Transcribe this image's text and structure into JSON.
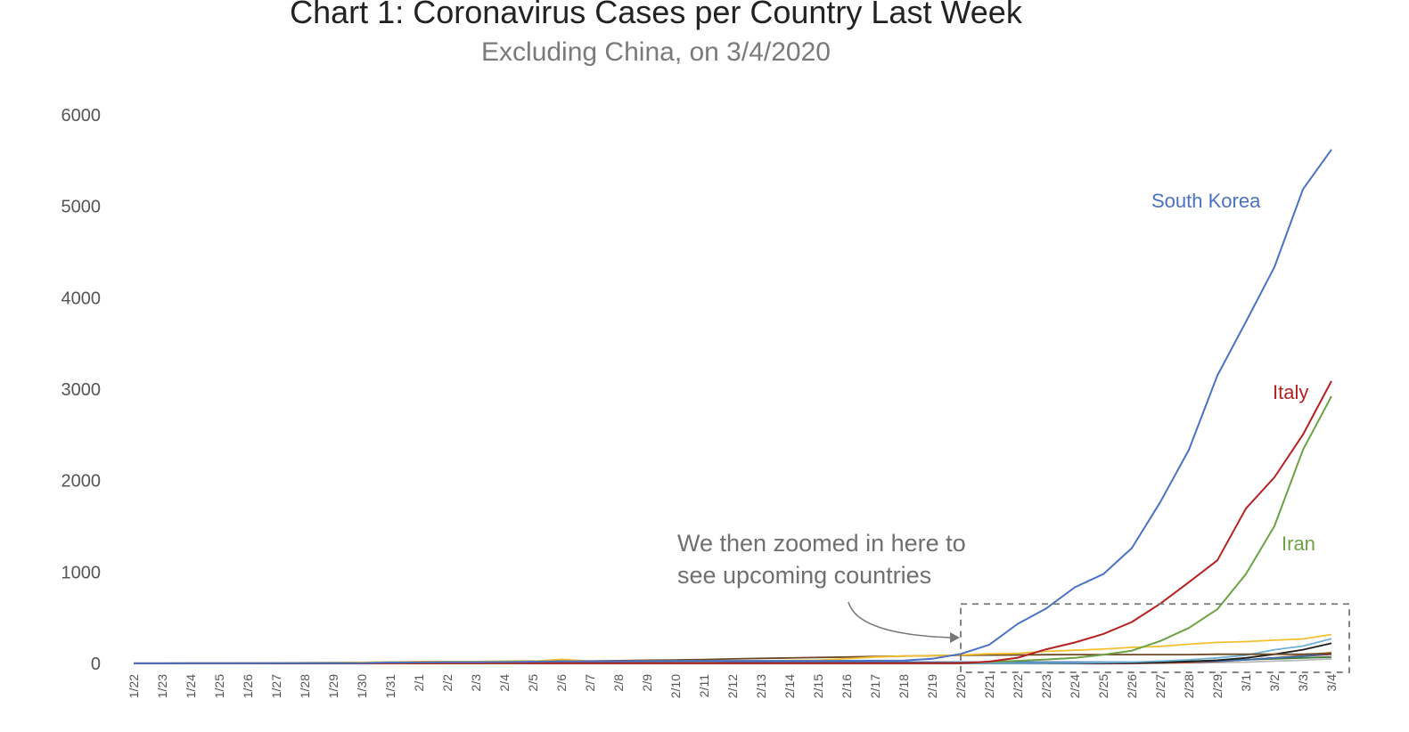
{
  "chart_data": {
    "type": "line",
    "title": "Chart 1: Coronavirus Cases per Country Last Week",
    "subtitle": "Excluding China, on 3/4/2020",
    "xlabel": "",
    "ylabel": "",
    "ylim": [
      0,
      6000
    ],
    "yticks": [
      "0",
      "1000",
      "2000",
      "3000",
      "4000",
      "5000",
      "6000"
    ],
    "grid": false,
    "legend": "none",
    "x": [
      "1/22",
      "1/23",
      "1/24",
      "1/25",
      "1/26",
      "1/27",
      "1/28",
      "1/29",
      "1/30",
      "1/31",
      "2/1",
      "2/2",
      "2/3",
      "2/4",
      "2/5",
      "2/6",
      "2/7",
      "2/8",
      "2/9",
      "2/10",
      "2/11",
      "2/12",
      "2/13",
      "2/14",
      "2/15",
      "2/16",
      "2/17",
      "2/18",
      "2/19",
      "2/20",
      "2/21",
      "2/22",
      "2/23",
      "2/24",
      "2/25",
      "2/26",
      "2/27",
      "2/28",
      "2/29",
      "3/1",
      "3/2",
      "3/3",
      "3/4"
    ],
    "series": [
      {
        "name": "South Korea",
        "color": "#4a72c4",
        "values": [
          1,
          1,
          2,
          2,
          3,
          4,
          4,
          4,
          4,
          11,
          12,
          15,
          15,
          16,
          19,
          23,
          24,
          24,
          25,
          27,
          28,
          28,
          28,
          28,
          28,
          29,
          30,
          31,
          51,
          104,
          204,
          433,
          602,
          833,
          977,
          1261,
          1766,
          2337,
          3150,
          3736,
          4335,
          5186,
          5621
        ]
      },
      {
        "name": "Italy",
        "color": "#b52121",
        "values": [
          0,
          0,
          0,
          0,
          0,
          0,
          0,
          0,
          0,
          2,
          2,
          2,
          2,
          2,
          2,
          2,
          3,
          3,
          3,
          3,
          3,
          3,
          3,
          3,
          3,
          3,
          3,
          3,
          3,
          3,
          20,
          62,
          155,
          229,
          322,
          453,
          655,
          888,
          1128,
          1694,
          2036,
          2502,
          3089
        ]
      },
      {
        "name": "Iran",
        "color": "#6da244",
        "values": [
          0,
          0,
          0,
          0,
          0,
          0,
          0,
          0,
          0,
          0,
          0,
          0,
          0,
          0,
          0,
          0,
          0,
          0,
          0,
          0,
          0,
          0,
          0,
          0,
          0,
          0,
          0,
          0,
          2,
          5,
          18,
          28,
          43,
          61,
          95,
          139,
          245,
          388,
          593,
          978,
          1501,
          2336,
          2922
        ]
      },
      {
        "color": "#f2c02f",
        "values": [
          2,
          2,
          2,
          2,
          4,
          4,
          7,
          7,
          11,
          15,
          20,
          20,
          20,
          22,
          22,
          45,
          25,
          25,
          26,
          26,
          26,
          28,
          28,
          33,
          35,
          53,
          70,
          81,
          84,
          93,
          105,
          110,
          132,
          144,
          157,
          175,
          186,
          210,
          230,
          239,
          254,
          268,
          317
        ]
      },
      {
        "color": "#6c4a24",
        "values": [
          2,
          2,
          3,
          3,
          4,
          6,
          7,
          8,
          11,
          14,
          17,
          18,
          20,
          23,
          25,
          25,
          26,
          30,
          35,
          38,
          43,
          50,
          56,
          60,
          65,
          70,
          76,
          80,
          85,
          90,
          92,
          93,
          95,
          96,
          96,
          96,
          96,
          96,
          100,
          100,
          100,
          100,
          110
        ]
      },
      {
        "color": "#6fb1d6",
        "values": [
          0,
          0,
          0,
          0,
          0,
          0,
          0,
          0,
          0,
          0,
          0,
          0,
          0,
          0,
          0,
          0,
          0,
          0,
          0,
          0,
          0,
          0,
          0,
          0,
          0,
          0,
          0,
          0,
          0,
          0,
          1,
          2,
          3,
          5,
          10,
          15,
          25,
          40,
          60,
          90,
          150,
          190,
          270
        ]
      },
      {
        "color": "#1d1d1d",
        "values": [
          0,
          0,
          0,
          0,
          0,
          0,
          0,
          0,
          0,
          0,
          0,
          0,
          0,
          0,
          0,
          0,
          0,
          0,
          0,
          0,
          0,
          0,
          0,
          0,
          0,
          0,
          0,
          0,
          0,
          0,
          0,
          0,
          0,
          0,
          2,
          5,
          10,
          20,
          35,
          60,
          100,
          150,
          220
        ]
      },
      {
        "color": "#3a6fb0",
        "values": [
          1,
          1,
          2,
          2,
          5,
          5,
          5,
          5,
          5,
          6,
          7,
          8,
          11,
          11,
          12,
          12,
          12,
          12,
          12,
          12,
          13,
          13,
          14,
          14,
          14,
          15,
          15,
          15,
          15,
          15,
          15,
          15,
          15,
          15,
          15,
          15,
          15,
          20,
          25,
          40,
          60,
          80,
          110
        ]
      },
      {
        "color": "#e07b2d",
        "values": [
          0,
          0,
          0,
          0,
          0,
          0,
          0,
          0,
          0,
          0,
          0,
          0,
          0,
          0,
          0,
          0,
          0,
          0,
          0,
          0,
          0,
          0,
          0,
          0,
          0,
          0,
          0,
          0,
          0,
          0,
          0,
          0,
          0,
          0,
          2,
          5,
          8,
          15,
          25,
          40,
          60,
          90,
          120
        ]
      },
      {
        "color": "#8a1f2e",
        "values": [
          0,
          0,
          0,
          0,
          0,
          0,
          0,
          0,
          0,
          0,
          0,
          0,
          0,
          0,
          0,
          0,
          0,
          0,
          0,
          0,
          0,
          0,
          0,
          0,
          0,
          0,
          0,
          0,
          0,
          0,
          0,
          0,
          0,
          0,
          0,
          0,
          5,
          10,
          20,
          40,
          60,
          80,
          100
        ]
      },
      {
        "color": "#3e7d3a",
        "values": [
          0,
          0,
          0,
          0,
          0,
          0,
          0,
          0,
          0,
          0,
          0,
          0,
          0,
          0,
          0,
          0,
          0,
          0,
          0,
          0,
          0,
          0,
          0,
          0,
          0,
          0,
          0,
          0,
          0,
          0,
          0,
          0,
          2,
          5,
          8,
          12,
          18,
          25,
          30,
          40,
          50,
          60,
          70
        ]
      },
      {
        "color": "#b8b8b8",
        "values": [
          0,
          0,
          0,
          0,
          0,
          0,
          0,
          0,
          0,
          0,
          0,
          0,
          0,
          0,
          0,
          0,
          0,
          0,
          0,
          0,
          0,
          0,
          0,
          0,
          0,
          0,
          0,
          0,
          0,
          0,
          0,
          0,
          0,
          0,
          0,
          1,
          3,
          6,
          10,
          15,
          25,
          35,
          50
        ]
      }
    ],
    "annotation": {
      "lines": [
        "We then zoomed in here to",
        "see upcoming countries"
      ],
      "zoom_box_x": [
        "2/20",
        "3/4"
      ],
      "zoom_box_y": [
        0,
        650
      ]
    }
  }
}
